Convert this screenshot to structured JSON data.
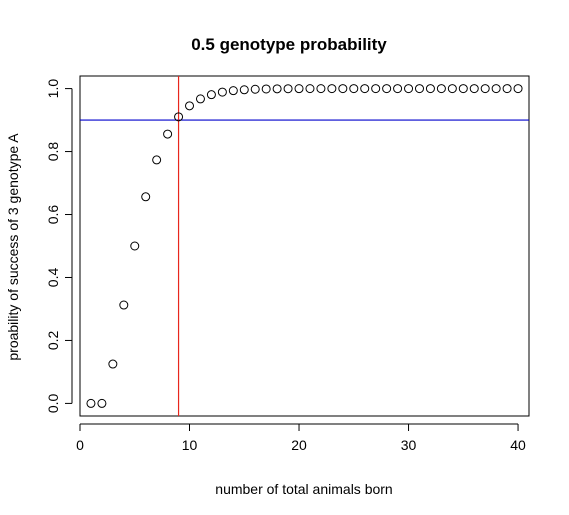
{
  "chart_data": {
    "type": "scatter",
    "title": "0.5 genotype probability",
    "xlabel": "number of total animals born",
    "ylabel": "proability of success of 3 genotype A",
    "xlim": [
      0,
      41
    ],
    "ylim": [
      -0.04,
      1.04
    ],
    "xticks": [
      0,
      10,
      20,
      30,
      40
    ],
    "xtick_labels": [
      "0",
      "10",
      "20",
      "30",
      "40"
    ],
    "yticks": [
      0.0,
      0.2,
      0.4,
      0.6,
      0.8,
      1.0
    ],
    "ytick_labels": [
      "0.0",
      "0.2",
      "0.4",
      "0.6",
      "0.8",
      "1.0"
    ],
    "grid": false,
    "marker": "open-circle",
    "x": [
      1,
      2,
      3,
      4,
      5,
      6,
      7,
      8,
      9,
      10,
      11,
      12,
      13,
      14,
      15,
      16,
      17,
      18,
      19,
      20,
      21,
      22,
      23,
      24,
      25,
      26,
      27,
      28,
      29,
      30,
      31,
      32,
      33,
      34,
      35,
      36,
      37,
      38,
      39,
      40
    ],
    "y": [
      0,
      0,
      0.125,
      0.3125,
      0.5,
      0.65625,
      0.7734,
      0.8555,
      0.9102,
      0.9453,
      0.9673,
      0.9807,
      0.9888,
      0.9935,
      0.9963,
      0.9979,
      0.9988,
      0.9993,
      0.9996,
      0.9998,
      0.9999,
      0.9999,
      1.0,
      1.0,
      1.0,
      1.0,
      1.0,
      1.0,
      1.0,
      1.0,
      1.0,
      1.0,
      1.0,
      1.0,
      1.0,
      1.0,
      1.0,
      1.0,
      1.0,
      1.0
    ],
    "reference_lines": [
      {
        "orientation": "horizontal",
        "value": 0.9,
        "color": "#0000cc"
      },
      {
        "orientation": "vertical",
        "value": 9,
        "color": "#e8261c"
      }
    ]
  }
}
